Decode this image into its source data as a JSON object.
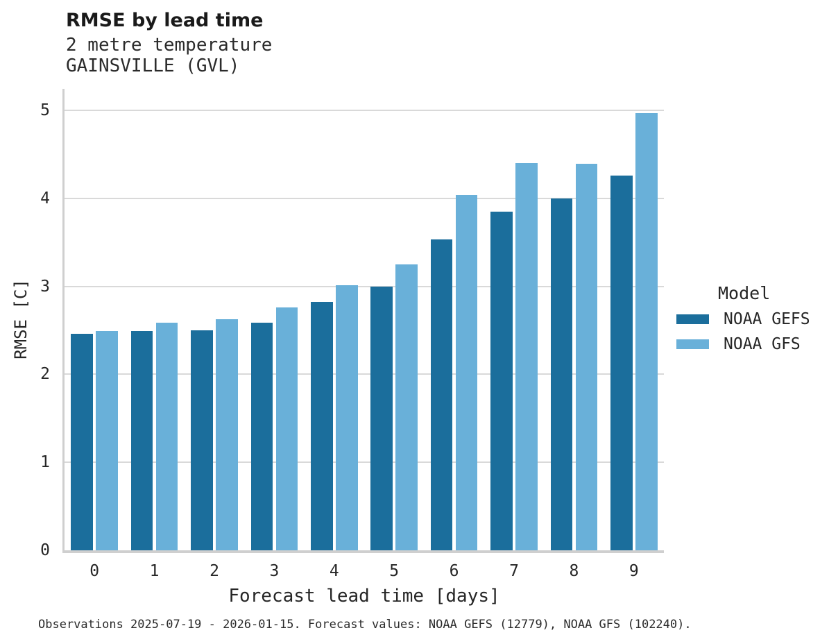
{
  "chart_data": {
    "type": "bar",
    "title": "RMSE by lead time",
    "subtitle1": "2 metre temperature",
    "subtitle2": "GAINSVILLE (GVL)",
    "xlabel": "Forecast lead time [days]",
    "ylabel": "RMSE [C]",
    "legend_title": "Model",
    "legend_position": "right",
    "grid": true,
    "ylim": [
      0,
      5
    ],
    "yticks": [
      0,
      1,
      2,
      3,
      4,
      5
    ],
    "categories": [
      "0",
      "1",
      "2",
      "3",
      "4",
      "5",
      "6",
      "7",
      "8",
      "9"
    ],
    "series": [
      {
        "name": "NOAA GEFS",
        "color": "#1b6e9c",
        "values": [
          2.46,
          2.49,
          2.5,
          2.59,
          2.82,
          3.0,
          3.53,
          3.85,
          4.0,
          4.26
        ]
      },
      {
        "name": "NOAA GFS",
        "color": "#69b0d9",
        "values": [
          2.49,
          2.59,
          2.63,
          2.76,
          3.01,
          3.25,
          4.04,
          4.4,
          4.39,
          4.97
        ]
      }
    ]
  },
  "caption": "Observations 2025-07-19 - 2026-01-15. Forecast values: NOAA GEFS (12779), NOAA GFS (102240)."
}
